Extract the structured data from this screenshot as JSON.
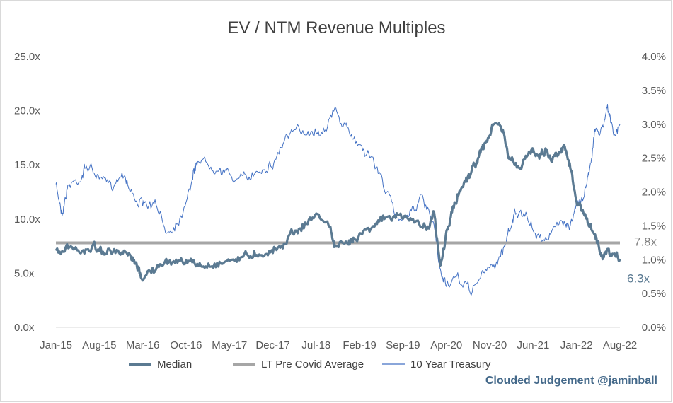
{
  "chart_data": {
    "type": "line",
    "title": "EV / NTM Revenue Multiples",
    "credit": "Clouded Judgement @jaminball",
    "x_tick_labels": [
      "Jan-15",
      "Aug-15",
      "Mar-16",
      "Oct-16",
      "May-17",
      "Dec-17",
      "Jul-18",
      "Feb-19",
      "Sep-19",
      "Apr-20",
      "Nov-20",
      "Jun-21",
      "Jan-22",
      "Aug-22"
    ],
    "y_left": {
      "ticks": [
        "0.0x",
        "5.0x",
        "10.0x",
        "15.0x",
        "20.0x",
        "25.0x"
      ],
      "ylim": [
        0,
        25
      ]
    },
    "y_right": {
      "ticks": [
        "0.0%",
        "0.5%",
        "1.0%",
        "1.5%",
        "2.0%",
        "2.5%",
        "3.0%",
        "3.5%",
        "4.0%"
      ],
      "ylim": [
        0,
        4
      ]
    },
    "grid": false,
    "legend_position": "bottom",
    "series": [
      {
        "name": "Median",
        "axis": "left",
        "color": "#5b7a92",
        "end_label": "6.3x",
        "x": [
          "2015-01",
          "2015-03",
          "2015-05",
          "2015-07",
          "2015-09",
          "2015-11",
          "2016-01",
          "2016-02",
          "2016-03",
          "2016-05",
          "2016-07",
          "2016-09",
          "2016-11",
          "2017-01",
          "2017-03",
          "2017-05",
          "2017-07",
          "2017-09",
          "2017-11",
          "2018-01",
          "2018-03",
          "2018-05",
          "2018-07",
          "2018-09",
          "2018-10",
          "2018-12",
          "2019-01",
          "2019-03",
          "2019-05",
          "2019-07",
          "2019-09",
          "2019-11",
          "2020-01",
          "2020-02",
          "2020-03",
          "2020-04",
          "2020-05",
          "2020-06",
          "2020-07",
          "2020-08",
          "2020-09",
          "2020-10",
          "2020-11",
          "2020-12",
          "2021-01",
          "2021-02",
          "2021-03",
          "2021-04",
          "2021-05",
          "2021-06",
          "2021-07",
          "2021-08",
          "2021-09",
          "2021-10",
          "2021-11",
          "2021-12",
          "2022-01",
          "2022-02",
          "2022-03",
          "2022-04",
          "2022-05",
          "2022-06",
          "2022-07",
          "2022-08"
        ],
        "y": [
          6.9,
          7.3,
          7.0,
          7.5,
          7.0,
          6.8,
          6.5,
          5.6,
          4.6,
          5.4,
          5.9,
          6.3,
          5.9,
          5.6,
          5.9,
          6.2,
          6.5,
          6.8,
          6.9,
          7.3,
          8.7,
          9.4,
          10.4,
          9.6,
          7.5,
          7.6,
          8.3,
          9.0,
          9.9,
          10.1,
          10.3,
          9.7,
          9.3,
          10.5,
          5.5,
          8.6,
          10.8,
          12.3,
          13.6,
          14.3,
          15.6,
          16.6,
          17.8,
          19.0,
          18.3,
          15.8,
          15.0,
          14.6,
          15.8,
          16.5,
          15.9,
          16.4,
          15.5,
          16.2,
          16.8,
          15.1,
          11.4,
          10.8,
          9.4,
          8.6,
          6.3,
          6.8,
          6.6,
          6.3
        ]
      },
      {
        "name": "LT Pre Covid Average",
        "axis": "left",
        "color": "#a6a6a6",
        "end_label": "7.8x",
        "x": [
          "2015-01",
          "2022-08"
        ],
        "y": [
          7.8,
          7.8
        ]
      },
      {
        "name": "10 Year Treasury",
        "axis": "right",
        "color": "#4472c4",
        "x": [
          "2015-01",
          "2015-02",
          "2015-03",
          "2015-05",
          "2015-06",
          "2015-08",
          "2015-10",
          "2015-12",
          "2016-01",
          "2016-03",
          "2016-05",
          "2016-07",
          "2016-09",
          "2016-11",
          "2016-12",
          "2017-02",
          "2017-04",
          "2017-06",
          "2017-08",
          "2017-10",
          "2017-12",
          "2018-02",
          "2018-04",
          "2018-06",
          "2018-08",
          "2018-10",
          "2018-12",
          "2019-02",
          "2019-04",
          "2019-06",
          "2019-08",
          "2019-10",
          "2019-12",
          "2020-02",
          "2020-03",
          "2020-04",
          "2020-06",
          "2020-08",
          "2020-10",
          "2020-12",
          "2021-01",
          "2021-02",
          "2021-03",
          "2021-05",
          "2021-07",
          "2021-09",
          "2021-11",
          "2021-12",
          "2022-01",
          "2022-02",
          "2022-03",
          "2022-04",
          "2022-05",
          "2022-06",
          "2022-07",
          "2022-08"
        ],
        "y": [
          2.1,
          1.7,
          2.1,
          2.2,
          2.4,
          2.2,
          2.1,
          2.3,
          2.0,
          1.8,
          1.8,
          1.4,
          1.6,
          2.2,
          2.5,
          2.4,
          2.3,
          2.2,
          2.2,
          2.35,
          2.4,
          2.8,
          2.9,
          2.9,
          2.9,
          3.2,
          2.9,
          2.7,
          2.5,
          2.1,
          1.6,
          1.7,
          1.9,
          1.5,
          0.8,
          0.65,
          0.7,
          0.55,
          0.8,
          0.95,
          1.1,
          1.4,
          1.7,
          1.6,
          1.3,
          1.4,
          1.6,
          1.5,
          1.8,
          1.9,
          2.3,
          2.9,
          2.9,
          3.3,
          2.8,
          3.0
        ]
      }
    ]
  }
}
